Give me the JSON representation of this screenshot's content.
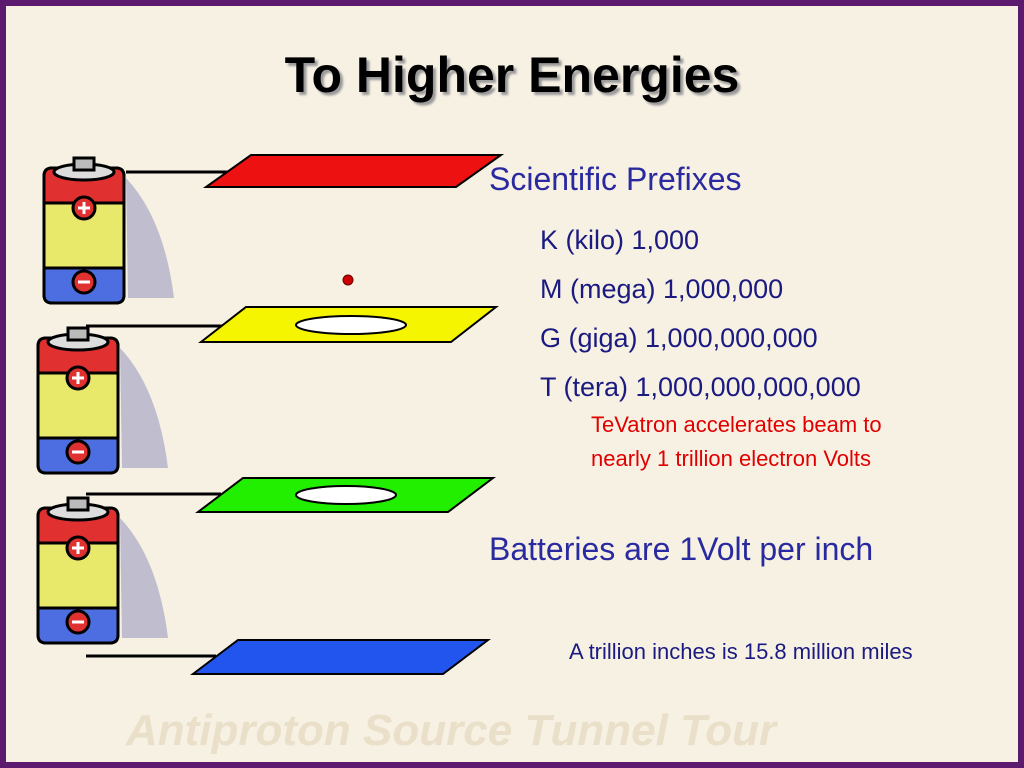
{
  "title": "To Higher Energies",
  "bullets": {
    "heading": "Scientific Prefixes",
    "prefixes": [
      "K (kilo) 1,000",
      "M (mega) 1,000,000",
      "G (giga) 1,000,000,000",
      "T (tera) 1,000,000,000,000"
    ],
    "note": [
      "TeVatron accelerates beam to",
      "nearly 1 trillion electron Volts"
    ],
    "batteries": "Batteries are 1Volt per inch",
    "footnote": "A trillion inches is 15.8 million miles"
  },
  "watermark": "Antiproton Source Tunnel Tour"
}
